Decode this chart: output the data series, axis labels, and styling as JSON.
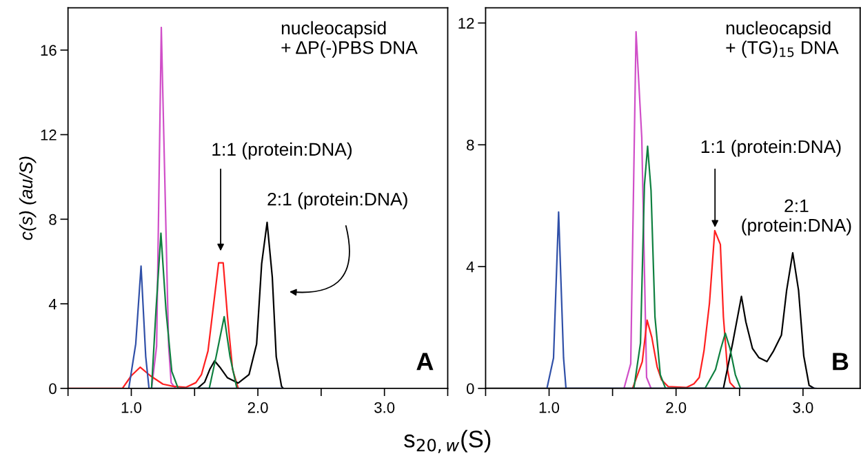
{
  "chart_data": [
    {
      "type": "line",
      "xlabel": "s$_{20,w}$(S)",
      "ylabel": "c(s) (au/S)",
      "xlim": [
        0.5,
        3.5
      ],
      "ylim": [
        0,
        18
      ],
      "xticks": [
        {
          "value": 0.5,
          "label": null
        },
        {
          "value": 1.0,
          "label": "1.0"
        },
        {
          "value": 1.5,
          "label": null
        },
        {
          "value": 2.0,
          "label": "2.0"
        },
        {
          "value": 2.5,
          "label": null
        },
        {
          "value": 3.0,
          "label": "3.0"
        },
        {
          "value": 3.5,
          "label": null
        }
      ],
      "yticks": [
        0,
        4,
        8,
        12,
        16
      ],
      "annotations": [
        "nucleocapsid\n+ ΔP(-)PBS DNA",
        "1:1 (protein:DNA)",
        "2:1 (protein:DNA)",
        "A"
      ],
      "series": [
        {
          "color": "#d04fc8",
          "x": [
            1.16,
            1.2,
            1.237,
            1.295,
            1.315,
            1.35
          ],
          "values": [
            0,
            2.0,
            17.07,
            2.0,
            0.27,
            0
          ]
        },
        {
          "color": "#ff2020",
          "x": [
            0.5,
            0.93,
            1.0,
            1.07,
            1.15,
            1.25,
            1.33,
            1.43,
            1.51,
            1.554,
            1.606,
            1.69,
            1.726,
            1.76,
            1.8,
            1.845
          ],
          "values": [
            0,
            0,
            0.6,
            1.0,
            0.6,
            0.2,
            0.1,
            0.05,
            0.27,
            0.65,
            1.77,
            5.94,
            5.94,
            3.4,
            0.9,
            0
          ]
        },
        {
          "color": "#000000",
          "x": [
            1.523,
            1.58,
            1.62,
            1.658,
            1.7,
            1.76,
            1.845,
            1.93,
            1.99,
            2.03,
            2.073,
            2.114,
            2.145,
            2.187,
            2.2
          ],
          "values": [
            0,
            0.3,
            0.9,
            1.3,
            1.0,
            0.5,
            0.25,
            0.65,
            2.1,
            5.9,
            7.85,
            5.26,
            1.5,
            0.1,
            0
          ]
        },
        {
          "color": "#0f8040",
          "x": [
            1.16,
            1.195,
            1.234,
            1.274,
            1.32,
            1.37,
            1.616,
            1.67,
            1.734,
            1.78,
            1.834
          ],
          "values": [
            0,
            3.7,
            7.34,
            3.7,
            0.8,
            0,
            0,
            1.5,
            3.39,
            1.5,
            0
          ]
        },
        {
          "color": "#3050a8",
          "x": [
            0.98,
            1.035,
            1.077,
            1.114,
            1.14,
            2.2
          ],
          "values": [
            0,
            2.1,
            5.78,
            1.5,
            0,
            0
          ]
        }
      ]
    },
    {
      "type": "line",
      "xlim": [
        0.5,
        3.45
      ],
      "ylim": [
        0,
        12.5
      ],
      "xticks": [
        {
          "value": 0.5,
          "label": null
        },
        {
          "value": 1.0,
          "label": "1.0"
        },
        {
          "value": 1.5,
          "label": null
        },
        {
          "value": 2.0,
          "label": "2.0"
        },
        {
          "value": 2.5,
          "label": null
        },
        {
          "value": 3.0,
          "label": "3.0"
        }
      ],
      "yticks": [
        0,
        4,
        8,
        12
      ],
      "annotations": [
        "nucleocapsid\n+ (TG)$_{15}$ DNA",
        "1:1 (protein:DNA)",
        "2:1\n(protein:DNA)",
        "B"
      ],
      "series": [
        {
          "color": "#d04fc8",
          "x": [
            1.59,
            1.643,
            1.685,
            1.73,
            1.768,
            1.803
          ],
          "values": [
            0,
            0.81,
            11.71,
            8.24,
            0.36,
            0
          ]
        },
        {
          "color": "#ff2020",
          "x": [
            1.658,
            1.734,
            1.772,
            1.809,
            1.851,
            1.886,
            1.938,
            2.083,
            2.141,
            2.183,
            2.22,
            2.263,
            2.305,
            2.349,
            2.373,
            2.405,
            2.425,
            2.467
          ],
          "values": [
            0,
            0.88,
            2.24,
            1.68,
            0.71,
            0.28,
            0.06,
            0.03,
            0.15,
            0.36,
            1.23,
            2.79,
            5.18,
            4.73,
            2.35,
            0.62,
            0.19,
            0
          ]
        },
        {
          "color": "#000000",
          "x": [
            0.5,
            0.85,
            2.373,
            2.446,
            2.515,
            2.55,
            2.602,
            2.653,
            2.716,
            2.768,
            2.83,
            2.871,
            2.919,
            2.965,
            3.006,
            3.048,
            3.089
          ],
          "values": [
            0,
            0,
            0,
            1.49,
            3.02,
            2.18,
            1.31,
            1.01,
            0.88,
            1.23,
            1.75,
            3.22,
            4.45,
            3.22,
            1.06,
            0.1,
            0
          ]
        },
        {
          "color": "#0f8040",
          "x": [
            1.668,
            1.72,
            1.751,
            1.776,
            1.803,
            1.834,
            1.876,
            1.917,
            2.228,
            2.311,
            2.353,
            2.388,
            2.425,
            2.467,
            2.508
          ],
          "values": [
            0,
            1.49,
            6.68,
            7.95,
            6.5,
            2.35,
            0.45,
            0,
            0,
            0.62,
            1.31,
            1.81,
            1.31,
            0.45,
            0
          ]
        },
        {
          "color": "#3050a8",
          "x": [
            0.983,
            1.035,
            1.075,
            1.114,
            1.133,
            3.1
          ],
          "values": [
            0,
            1.0,
            5.79,
            1.0,
            0,
            0
          ]
        }
      ]
    }
  ]
}
